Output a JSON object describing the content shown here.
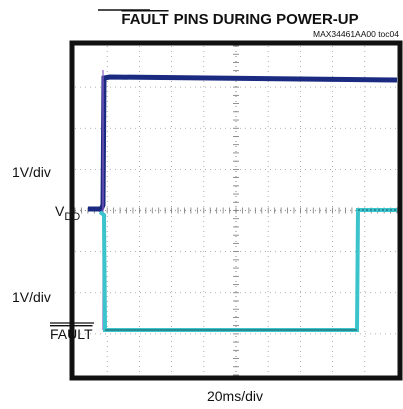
{
  "title": {
    "overlined": "FAULT",
    "rest": "PINS DURING POWER-UP"
  },
  "code": "MAX34461AA00 toc04",
  "channels": [
    {
      "scale": "1V/div",
      "name": {
        "main": "V",
        "sub": "DD"
      }
    },
    {
      "scale": "1V/div",
      "name": "FAULT"
    }
  ],
  "timebase": "20ms/div"
}
